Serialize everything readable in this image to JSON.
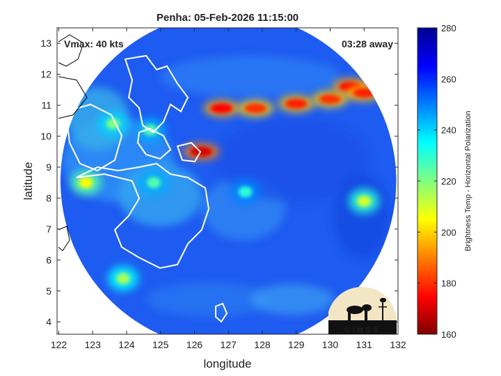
{
  "chart_data": {
    "type": "heatmap",
    "title": "Penha: 05-Feb-2026 11:15:00",
    "xlabel": "longitude",
    "ylabel": "latitude",
    "xlim": [
      121.95,
      132.0
    ],
    "ylim": [
      3.6,
      13.5
    ],
    "xticks": [
      122,
      123,
      124,
      125,
      126,
      127,
      128,
      129,
      130,
      131,
      132
    ],
    "yticks": [
      4,
      5,
      6,
      7,
      8,
      9,
      10,
      11,
      12,
      13
    ],
    "annotations": {
      "top_left": "Vmax: 40 kts",
      "top_right": "03:28 away"
    },
    "colorbar": {
      "label": "Brightness Temp - Horizontal Polarization",
      "range": [
        160,
        280
      ],
      "ticks": [
        160,
        180,
        200,
        220,
        240,
        260,
        280
      ]
    },
    "swath": {
      "center": [
        127.0,
        8.55
      ],
      "radius_deg": 4.95
    },
    "features": [
      {
        "lon": 126.8,
        "lat": 10.9,
        "value": 175
      },
      {
        "lon": 127.8,
        "lat": 10.9,
        "value": 180
      },
      {
        "lon": 129.0,
        "lat": 11.05,
        "value": 178
      },
      {
        "lon": 130.0,
        "lat": 11.2,
        "value": 180
      },
      {
        "lon": 130.6,
        "lat": 11.6,
        "value": 175
      },
      {
        "lon": 131.0,
        "lat": 11.4,
        "value": 178
      },
      {
        "lon": 126.2,
        "lat": 9.5,
        "value": 170
      },
      {
        "lon": 123.6,
        "lat": 10.4,
        "value": 220
      },
      {
        "lon": 124.7,
        "lat": 10.2,
        "value": 225
      },
      {
        "lon": 122.8,
        "lat": 8.5,
        "value": 205
      },
      {
        "lon": 124.8,
        "lat": 8.5,
        "value": 225
      },
      {
        "lon": 131.0,
        "lat": 7.9,
        "value": 210
      },
      {
        "lon": 123.9,
        "lat": 5.4,
        "value": 215
      },
      {
        "lon": 127.5,
        "lat": 8.2,
        "value": 230
      }
    ],
    "grid": false,
    "logo": "CIMSS"
  }
}
